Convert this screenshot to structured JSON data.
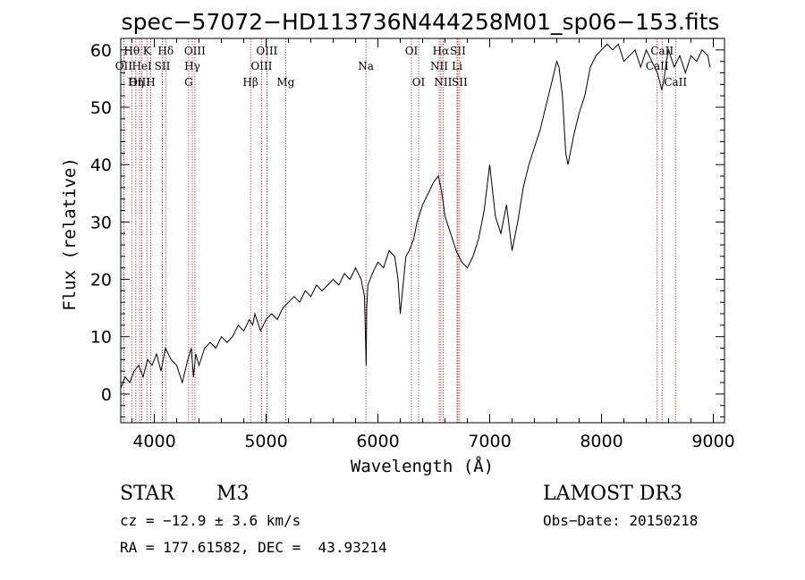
{
  "chart_data": {
    "type": "line",
    "title": "spec−57072−HD113736N444258M01_sp06−153.fits",
    "xlabel": "Wavelength (Å)",
    "ylabel": "Flux (relative)",
    "xlim": [
      3700,
      9100
    ],
    "ylim": [
      -5,
      62
    ],
    "xticks": [
      4000,
      5000,
      6000,
      7000,
      8000,
      9000
    ],
    "yticks": [
      0,
      10,
      20,
      30,
      40,
      50,
      60
    ],
    "series": [
      {
        "name": "spectrum",
        "x": [
          3700,
          3740,
          3780,
          3820,
          3860,
          3900,
          3940,
          3980,
          4020,
          4060,
          4100,
          4150,
          4200,
          4250,
          4300,
          4330,
          4350,
          4370,
          4400,
          4450,
          4500,
          4550,
          4600,
          4650,
          4700,
          4750,
          4800,
          4850,
          4880,
          4900,
          4950,
          5000,
          5050,
          5100,
          5150,
          5200,
          5250,
          5300,
          5350,
          5400,
          5450,
          5500,
          5550,
          5600,
          5650,
          5700,
          5750,
          5800,
          5850,
          5880,
          5895,
          5900,
          5910,
          5950,
          6000,
          6050,
          6100,
          6150,
          6180,
          6200,
          6250,
          6280,
          6300,
          6320,
          6350,
          6400,
          6450,
          6500,
          6540,
          6563,
          6580,
          6600,
          6650,
          6700,
          6750,
          6800,
          6850,
          6900,
          6950,
          7000,
          7050,
          7100,
          7150,
          7200,
          7250,
          7300,
          7350,
          7400,
          7450,
          7500,
          7550,
          7600,
          7620,
          7650,
          7680,
          7700,
          7750,
          7800,
          7850,
          7900,
          7950,
          8000,
          8050,
          8100,
          8150,
          8200,
          8250,
          8300,
          8350,
          8400,
          8450,
          8500,
          8540,
          8560,
          8580,
          8600,
          8650,
          8700,
          8750,
          8800,
          8850,
          8900,
          8950,
          8970
        ],
        "values": [
          1,
          3,
          2,
          4,
          5,
          3,
          6,
          5,
          7,
          4,
          8,
          6,
          5,
          2,
          6,
          8,
          3,
          7,
          5,
          8,
          9,
          8,
          10,
          9,
          10,
          12,
          11,
          13,
          12,
          14,
          11,
          13,
          14,
          13,
          15,
          16,
          17,
          16,
          18,
          17,
          19,
          18,
          19,
          20,
          19,
          21,
          20,
          22,
          20,
          17,
          5,
          15,
          19,
          21,
          23,
          22,
          25,
          24,
          20,
          14,
          24,
          25,
          26,
          27,
          30,
          33,
          35,
          37,
          38,
          36,
          34,
          31,
          28,
          25,
          23,
          22,
          24,
          27,
          32,
          40,
          31,
          28,
          33,
          25,
          30,
          36,
          40,
          43,
          46,
          50,
          54,
          58,
          57,
          52,
          42,
          40,
          45,
          49,
          52,
          57,
          59,
          60,
          61,
          60,
          61,
          58,
          59,
          60,
          57,
          60,
          58,
          56,
          53,
          55,
          58,
          60,
          57,
          59,
          56,
          59,
          58,
          60,
          59,
          57
        ]
      }
    ],
    "line_marks": [
      {
        "label": "Hθ",
        "x": 3798,
        "row": 0
      },
      {
        "label": "K",
        "x": 3934,
        "row": 0
      },
      {
        "label": "Hδ",
        "x": 4102,
        "row": 0
      },
      {
        "label": "OIII",
        "x": 4363,
        "row": 0
      },
      {
        "label": "OIII",
        "x": 5007,
        "row": 0
      },
      {
        "label": "OI",
        "x": 6300,
        "row": 0
      },
      {
        "label": "Hα",
        "x": 6563,
        "row": 0
      },
      {
        "label": "SII",
        "x": 6716,
        "row": 0
      },
      {
        "label": "CaII",
        "x": 8542,
        "row": 0
      },
      {
        "label": "OII",
        "x": 3727,
        "row": 1
      },
      {
        "label": "HeI",
        "x": 3889,
        "row": 1
      },
      {
        "label": "SII",
        "x": 4072,
        "row": 1
      },
      {
        "label": "Hγ",
        "x": 4340,
        "row": 1
      },
      {
        "label": "OIII",
        "x": 4959,
        "row": 1
      },
      {
        "label": "Na",
        "x": 5893,
        "row": 1
      },
      {
        "label": "NII",
        "x": 6548,
        "row": 1
      },
      {
        "label": "Li",
        "x": 6708,
        "row": 1
      },
      {
        "label": "CaII",
        "x": 8498,
        "row": 1
      },
      {
        "label": "OIII",
        "x": 3869,
        "row": 2
      },
      {
        "label": "Hη",
        "x": 3835,
        "row": 2
      },
      {
        "label": "H",
        "x": 3968,
        "row": 2
      },
      {
        "label": "G",
        "x": 4307,
        "row": 2
      },
      {
        "label": "Hβ",
        "x": 4861,
        "row": 2
      },
      {
        "label": "Mg",
        "x": 5175,
        "row": 2
      },
      {
        "label": "OI",
        "x": 6364,
        "row": 2
      },
      {
        "label": "NII",
        "x": 6583,
        "row": 2
      },
      {
        "label": "SII",
        "x": 6731,
        "row": 2
      },
      {
        "label": "CaII",
        "x": 8662,
        "row": 2
      }
    ]
  },
  "info": {
    "object_class": "STAR",
    "subclass": "M3",
    "survey": "LAMOST DR3",
    "cz": "cz = −12.9 ± 3.6 km/s",
    "obs_date": "Obs−Date: 20150218",
    "radec": "RA = 177.61582, DEC =  43.93214"
  },
  "colors": {
    "spectrum": "#000000",
    "line_marks": "#b22222",
    "axes": "#000000"
  }
}
